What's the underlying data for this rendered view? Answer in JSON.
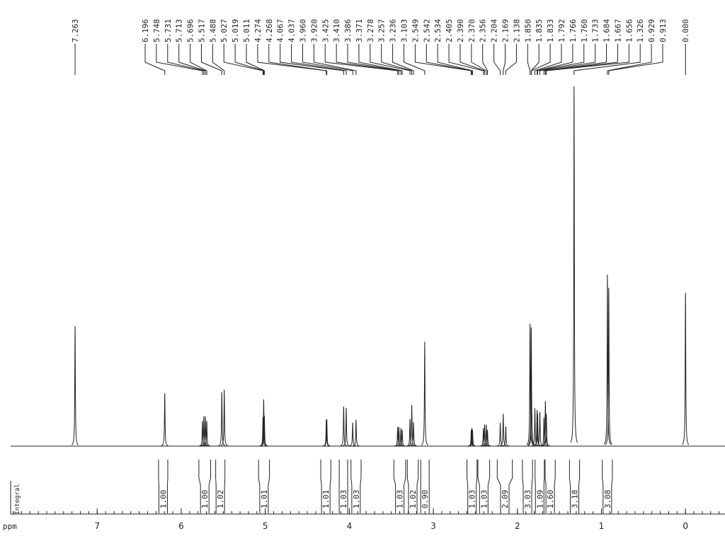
{
  "chart_data": {
    "type": "nmr",
    "xlabel": "ppm",
    "integral_label": "Integral",
    "xlim": [
      8.03,
      -0.47
    ],
    "xticks": [
      7,
      6,
      5,
      4,
      3,
      2,
      1,
      0
    ],
    "xminor_step": 0.1,
    "ylim": [
      0,
      100
    ],
    "x": [
      {
        "value": 7.263,
        "label": "7.263"
      },
      {
        "value": 6.196,
        "label": "6.196"
      },
      {
        "value": 5.748,
        "label": "5.748"
      },
      {
        "value": 5.731,
        "label": "5.731"
      },
      {
        "value": 5.713,
        "label": "5.713"
      },
      {
        "value": 5.696,
        "label": "5.696"
      },
      {
        "value": 5.517,
        "label": "5.517"
      },
      {
        "value": 5.488,
        "label": "5.488"
      },
      {
        "value": 5.027,
        "label": "5.027"
      },
      {
        "value": 5.019,
        "label": "5.019"
      },
      {
        "value": 5.011,
        "label": "5.011"
      },
      {
        "value": 4.274,
        "label": "4.274"
      },
      {
        "value": 4.268,
        "label": "4.268"
      },
      {
        "value": 4.067,
        "label": "4.067"
      },
      {
        "value": 4.037,
        "label": "4.037"
      },
      {
        "value": 3.96,
        "label": "3.960"
      },
      {
        "value": 3.92,
        "label": "3.920"
      },
      {
        "value": 3.425,
        "label": "3.425"
      },
      {
        "value": 3.41,
        "label": "3.410"
      },
      {
        "value": 3.386,
        "label": "3.386"
      },
      {
        "value": 3.371,
        "label": "3.371"
      },
      {
        "value": 3.278,
        "label": "3.278"
      },
      {
        "value": 3.257,
        "label": "3.257"
      },
      {
        "value": 3.236,
        "label": "3.236"
      },
      {
        "value": 3.103,
        "label": "3.103"
      },
      {
        "value": 2.549,
        "label": "2.549"
      },
      {
        "value": 2.542,
        "label": "2.542"
      },
      {
        "value": 2.534,
        "label": "2.534"
      },
      {
        "value": 2.405,
        "label": "2.405"
      },
      {
        "value": 2.39,
        "label": "2.390"
      },
      {
        "value": 2.37,
        "label": "2.370"
      },
      {
        "value": 2.356,
        "label": "2.356"
      },
      {
        "value": 2.204,
        "label": "2.204"
      },
      {
        "value": 2.169,
        "label": "2.169"
      },
      {
        "value": 2.138,
        "label": "2.138"
      },
      {
        "value": 1.85,
        "label": "1.850"
      },
      {
        "value": 1.835,
        "label": "1.835"
      },
      {
        "value": 1.833,
        "label": "1.833"
      },
      {
        "value": 1.792,
        "label": "1.792"
      },
      {
        "value": 1.766,
        "label": "1.766"
      },
      {
        "value": 1.76,
        "label": "1.760"
      },
      {
        "value": 1.733,
        "label": "1.733"
      },
      {
        "value": 1.684,
        "label": "1.684"
      },
      {
        "value": 1.667,
        "label": "1.667"
      },
      {
        "value": 1.656,
        "label": "1.656"
      },
      {
        "value": 1.326,
        "label": "1.326"
      },
      {
        "value": 0.929,
        "label": "0.929"
      },
      {
        "value": 0.913,
        "label": "0.913"
      },
      {
        "value": 0,
        "label": "0.000"
      }
    ],
    "values": [
      33.4,
      14.7,
      7,
      8.3,
      8.3,
      7,
      15,
      15.7,
      8,
      13,
      8.5,
      7.3,
      7.5,
      11,
      10.6,
      6.5,
      7.3,
      5.3,
      5.3,
      5,
      4.5,
      7.5,
      11.4,
      6.7,
      29,
      4.5,
      5,
      4.5,
      5,
      6,
      6,
      4.5,
      6.5,
      9,
      5.5,
      34,
      33,
      15,
      10.5,
      10,
      9,
      9.5,
      8,
      12.5,
      9,
      100,
      47.7,
      44,
      42.6
    ],
    "integrals": [
      {
        "from": 6.27,
        "to": 6.16,
        "value": 1,
        "label": "1.00"
      },
      {
        "from": 5.79,
        "to": 5.65,
        "value": 1,
        "label": "1.00"
      },
      {
        "from": 5.59,
        "to": 5.48,
        "value": 1.02,
        "label": "1.02"
      },
      {
        "from": 5.08,
        "to": 4.95,
        "value": 1.01,
        "label": "1.01"
      },
      {
        "from": 4.34,
        "to": 4.22,
        "value": 1.01,
        "label": "1.01"
      },
      {
        "from": 4.12,
        "to": 4.02,
        "value": 1.03,
        "label": "1.03"
      },
      {
        "from": 3.98,
        "to": 3.86,
        "value": 1.03,
        "label": "1.03"
      },
      {
        "from": 3.47,
        "to": 3.33,
        "value": 1.03,
        "label": "1.03"
      },
      {
        "from": 3.31,
        "to": 3.18,
        "value": 1.02,
        "label": "1.02"
      },
      {
        "from": 3.15,
        "to": 3.05,
        "value": 0.9,
        "label": "0.90"
      },
      {
        "from": 2.6,
        "to": 2.48,
        "value": 1.03,
        "label": "1.03"
      },
      {
        "from": 2.47,
        "to": 2.33,
        "value": 1.03,
        "label": "1.03"
      },
      {
        "from": 2.24,
        "to": 2.06,
        "value": 2.09,
        "label": "2.09"
      },
      {
        "from": 1.94,
        "to": 1.82,
        "value": 3.03,
        "label": "3.03"
      },
      {
        "from": 1.79,
        "to": 1.68,
        "value": 1.09,
        "label": "1.09"
      },
      {
        "from": 1.67,
        "to": 1.55,
        "value": 1.6,
        "label": "1.60"
      },
      {
        "from": 1.38,
        "to": 1.26,
        "value": 3.18,
        "label": "3.18"
      },
      {
        "from": 0.99,
        "to": 0.87,
        "value": 3.08,
        "label": "3.08"
      }
    ]
  }
}
